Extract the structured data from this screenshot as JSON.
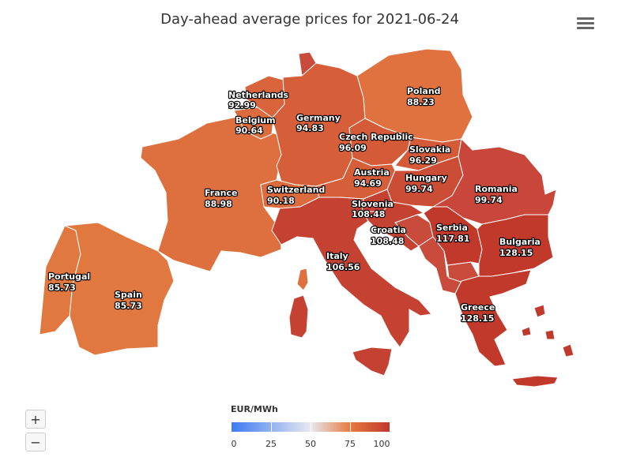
{
  "title": "Day-ahead average prices for 2021-06-24",
  "menu_icon": "hamburger-menu-icon",
  "zoom": {
    "in_label": "+",
    "out_label": "−"
  },
  "legend": {
    "title": "EUR/MWh",
    "ticks": [
      "0",
      "25",
      "50",
      "75",
      "100"
    ],
    "colors": {
      "low": "#3d7af2",
      "mid": "#e7e9ef",
      "high": "#e77a42",
      "max": "#c0392b"
    }
  },
  "countries": [
    {
      "id": "portugal",
      "name": "Portugal",
      "price": "85.73",
      "color": "#e07840"
    },
    {
      "id": "spain",
      "name": "Spain",
      "price": "85.73",
      "color": "#e07840"
    },
    {
      "id": "france",
      "name": "France",
      "price": "88.98",
      "color": "#de6f3e"
    },
    {
      "id": "belgium",
      "name": "Belgium",
      "price": "90.64",
      "color": "#dc6b3d"
    },
    {
      "id": "netherlands",
      "name": "Netherlands",
      "price": "92.99",
      "color": "#d9643b"
    },
    {
      "id": "germany",
      "name": "Germany",
      "price": "94.83",
      "color": "#d65e39"
    },
    {
      "id": "switzerland",
      "name": "Switzerland",
      "price": "90.18",
      "color": "#dc6b3d"
    },
    {
      "id": "poland",
      "name": "Poland",
      "price": "88.23",
      "color": "#e0723f"
    },
    {
      "id": "czech",
      "name": "Czech Republic",
      "price": "96.09",
      "color": "#d45a38"
    },
    {
      "id": "austria",
      "name": "Austria",
      "price": "94.69",
      "color": "#d65e39"
    },
    {
      "id": "slovakia",
      "name": "Slovakia",
      "price": "96.29",
      "color": "#d45a38"
    },
    {
      "id": "hungary",
      "name": "Hungary",
      "price": "99.74",
      "color": "#cc4d35"
    },
    {
      "id": "slovenia",
      "name": "Slovenia",
      "price": "108.48",
      "color": "#c54232"
    },
    {
      "id": "croatia",
      "name": "Croatia",
      "price": "108.48",
      "color": "#c54232"
    },
    {
      "id": "italy",
      "name": "Italy",
      "price": "106.56",
      "color": "#c54232"
    },
    {
      "id": "romania",
      "name": "Romania",
      "price": "99.74",
      "color": "#c8473a"
    },
    {
      "id": "serbia",
      "name": "Serbia",
      "price": "117.81",
      "color": "#c0392b"
    },
    {
      "id": "bulgaria",
      "name": "Bulgaria",
      "price": "128.15",
      "color": "#c0392b"
    },
    {
      "id": "greece",
      "name": "Greece",
      "price": "128.15",
      "color": "#c0392b"
    }
  ],
  "non_market_color": "#c84b3c"
}
